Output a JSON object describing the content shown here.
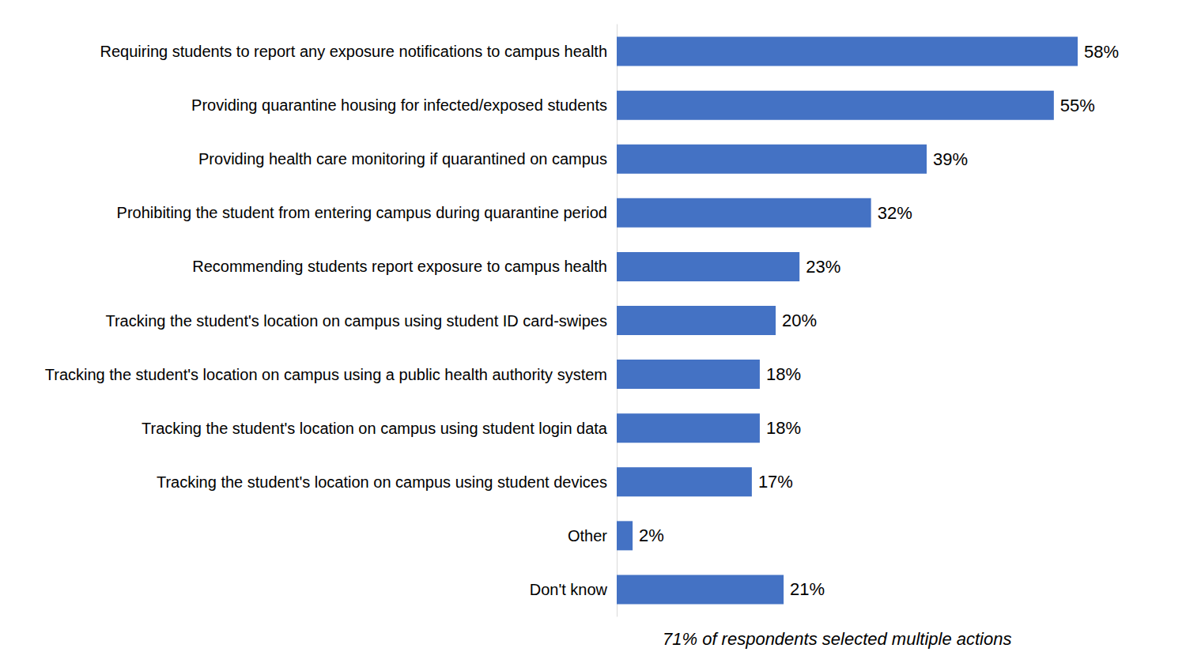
{
  "chart_data": {
    "type": "bar",
    "orientation": "horizontal",
    "categories": [
      "Requiring students to report any exposure notifications to campus health",
      "Providing quarantine housing for infected/exposed students",
      "Providing health care monitoring if quarantined on campus",
      "Prohibiting the student from entering campus during quarantine period",
      "Recommending students report exposure to campus health",
      "Tracking the student's location on campus using student ID card-swipes",
      "Tracking the student's location on campus using a public health authority system",
      "Tracking the student's location on campus using student login data",
      "Tracking the student's location on campus using student devices",
      "Other",
      "Don't know"
    ],
    "values": [
      58,
      55,
      39,
      32,
      23,
      20,
      18,
      18,
      17,
      2,
      21
    ],
    "value_labels": [
      "58%",
      "55%",
      "39%",
      "32%",
      "23%",
      "20%",
      "18%",
      "18%",
      "17%",
      "2%",
      "21%"
    ],
    "data_labels": true,
    "color": "#4472c4",
    "xlim": [
      0,
      58
    ],
    "tick_labels": "y",
    "grid": false,
    "annotation": "71% of respondents selected multiple actions"
  }
}
